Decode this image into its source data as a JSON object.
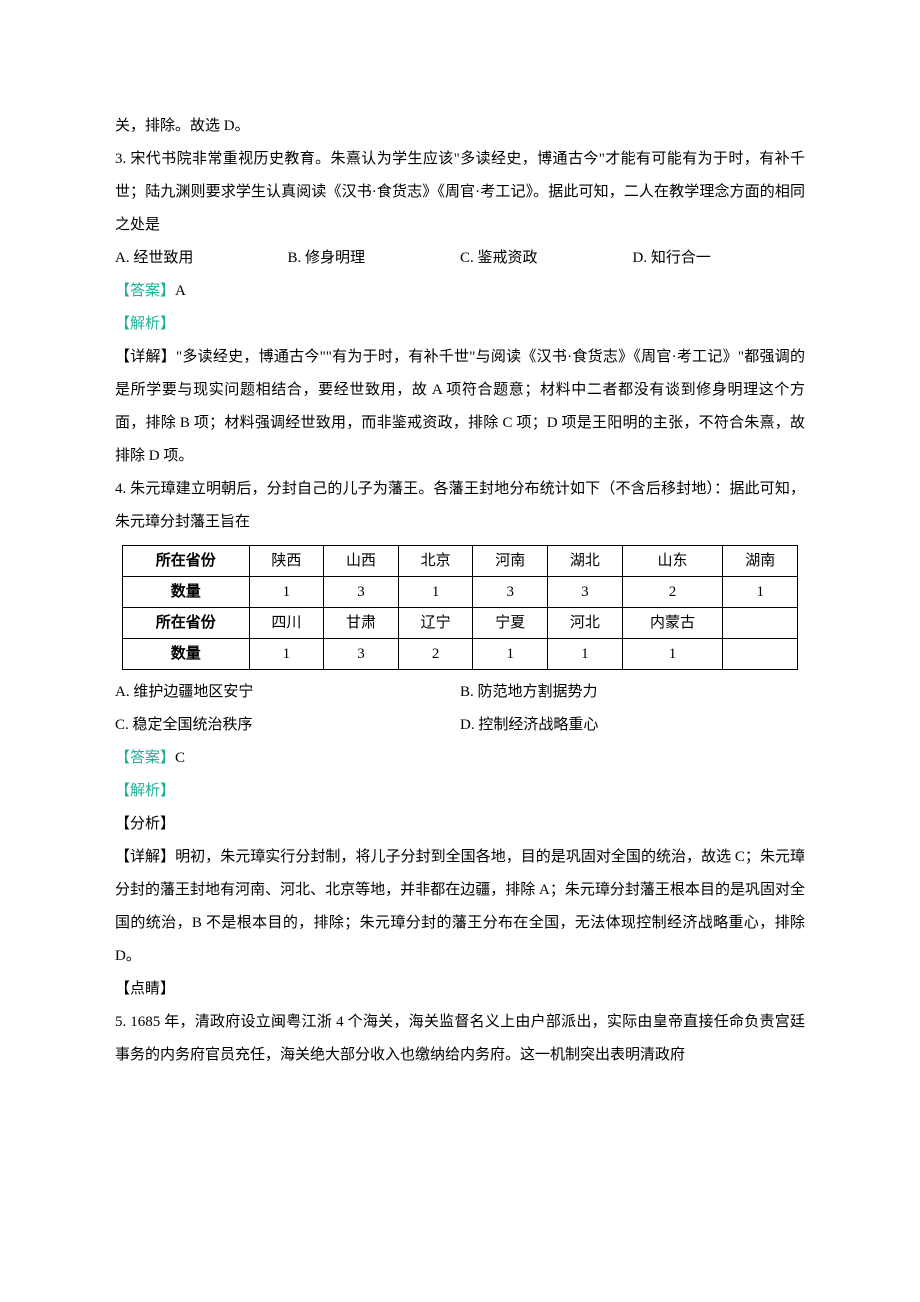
{
  "q2_tail": "关，排除。故选 D。",
  "q3": {
    "stem": "3. 宋代书院非常重视历史教育。朱熹认为学生应该\"多读经史，博通古今\"才能有可能有为于时，有补千世；陆九渊则要求学生认真阅读《汉书·食货志》《周官·考工记》。据此可知，二人在教学理念方面的相同之处是",
    "A": "A. 经世致用",
    "B": "B. 修身明理",
    "C": "C. 鉴戒资政",
    "D": "D. 知行合一",
    "ans_label": "【答案】",
    "ans_text": "A",
    "jiexi": "【解析】",
    "detail": "【详解】\"多读经史，博通古今\"\"有为于时，有补千世\"与阅读《汉书·食货志》《周官·考工记》\"都强调的是所学要与现实问题相结合，要经世致用，故 A 项符合题意；材料中二者都没有谈到修身明理这个方面，排除 B 项；材料强调经世致用，而非鉴戒资政，排除 C 项；D 项是王阳明的主张，不符合朱熹，故排除 D 项。"
  },
  "q4": {
    "stem": "4. 朱元璋建立明朝后，分封自己的儿子为藩王。各藩王封地分布统计如下（不含后移封地）：据此可知，朱元璋分封藩王旨在",
    "A": "A. 维护边疆地区安宁",
    "B": "B. 防范地方割据势力",
    "C": "C. 稳定全国统治秩序",
    "D": "D. 控制经济战略重心",
    "ans_label": "【答案】",
    "ans_text": "C",
    "jiexi": "【解析】",
    "fenxi": "【分析】",
    "detail": "【详解】明初，朱元璋实行分封制，将儿子分封到全国各地，目的是巩固对全国的统治，故选 C；朱元璋分封的藩王封地有河南、河北、北京等地，并非都在边疆，排除 A；朱元璋分封藩王根本目的是巩固对全国的统治，B 不是根本目的，排除；朱元璋分封的藩王分布在全国，无法体现控制经济战略重心，排除 D。",
    "dianjing": "【点睛】",
    "table": {
      "row1_label": "所在省份",
      "row2_label": "数量",
      "row3_label": "所在省份",
      "row4_label": "数量",
      "r1": [
        "陕西",
        "山西",
        "北京",
        "河南",
        "湖北",
        "山东",
        "湖南"
      ],
      "r2": [
        "1",
        "3",
        "1",
        "3",
        "3",
        "2",
        "1"
      ],
      "r3": [
        "四川",
        "甘肃",
        "辽宁",
        "宁夏",
        "河北",
        "内蒙古",
        ""
      ],
      "r4": [
        "1",
        "3",
        "2",
        "1",
        "1",
        "1",
        ""
      ]
    }
  },
  "q5": {
    "stem": "5. 1685 年，清政府设立闽粤江浙 4 个海关，海关监督名义上由户部派出，实际由皇帝直接任命负责宫廷事务的内务府官员充任，海关绝大部分收入也缴纳给内务府。这一机制突出表明清政府"
  }
}
